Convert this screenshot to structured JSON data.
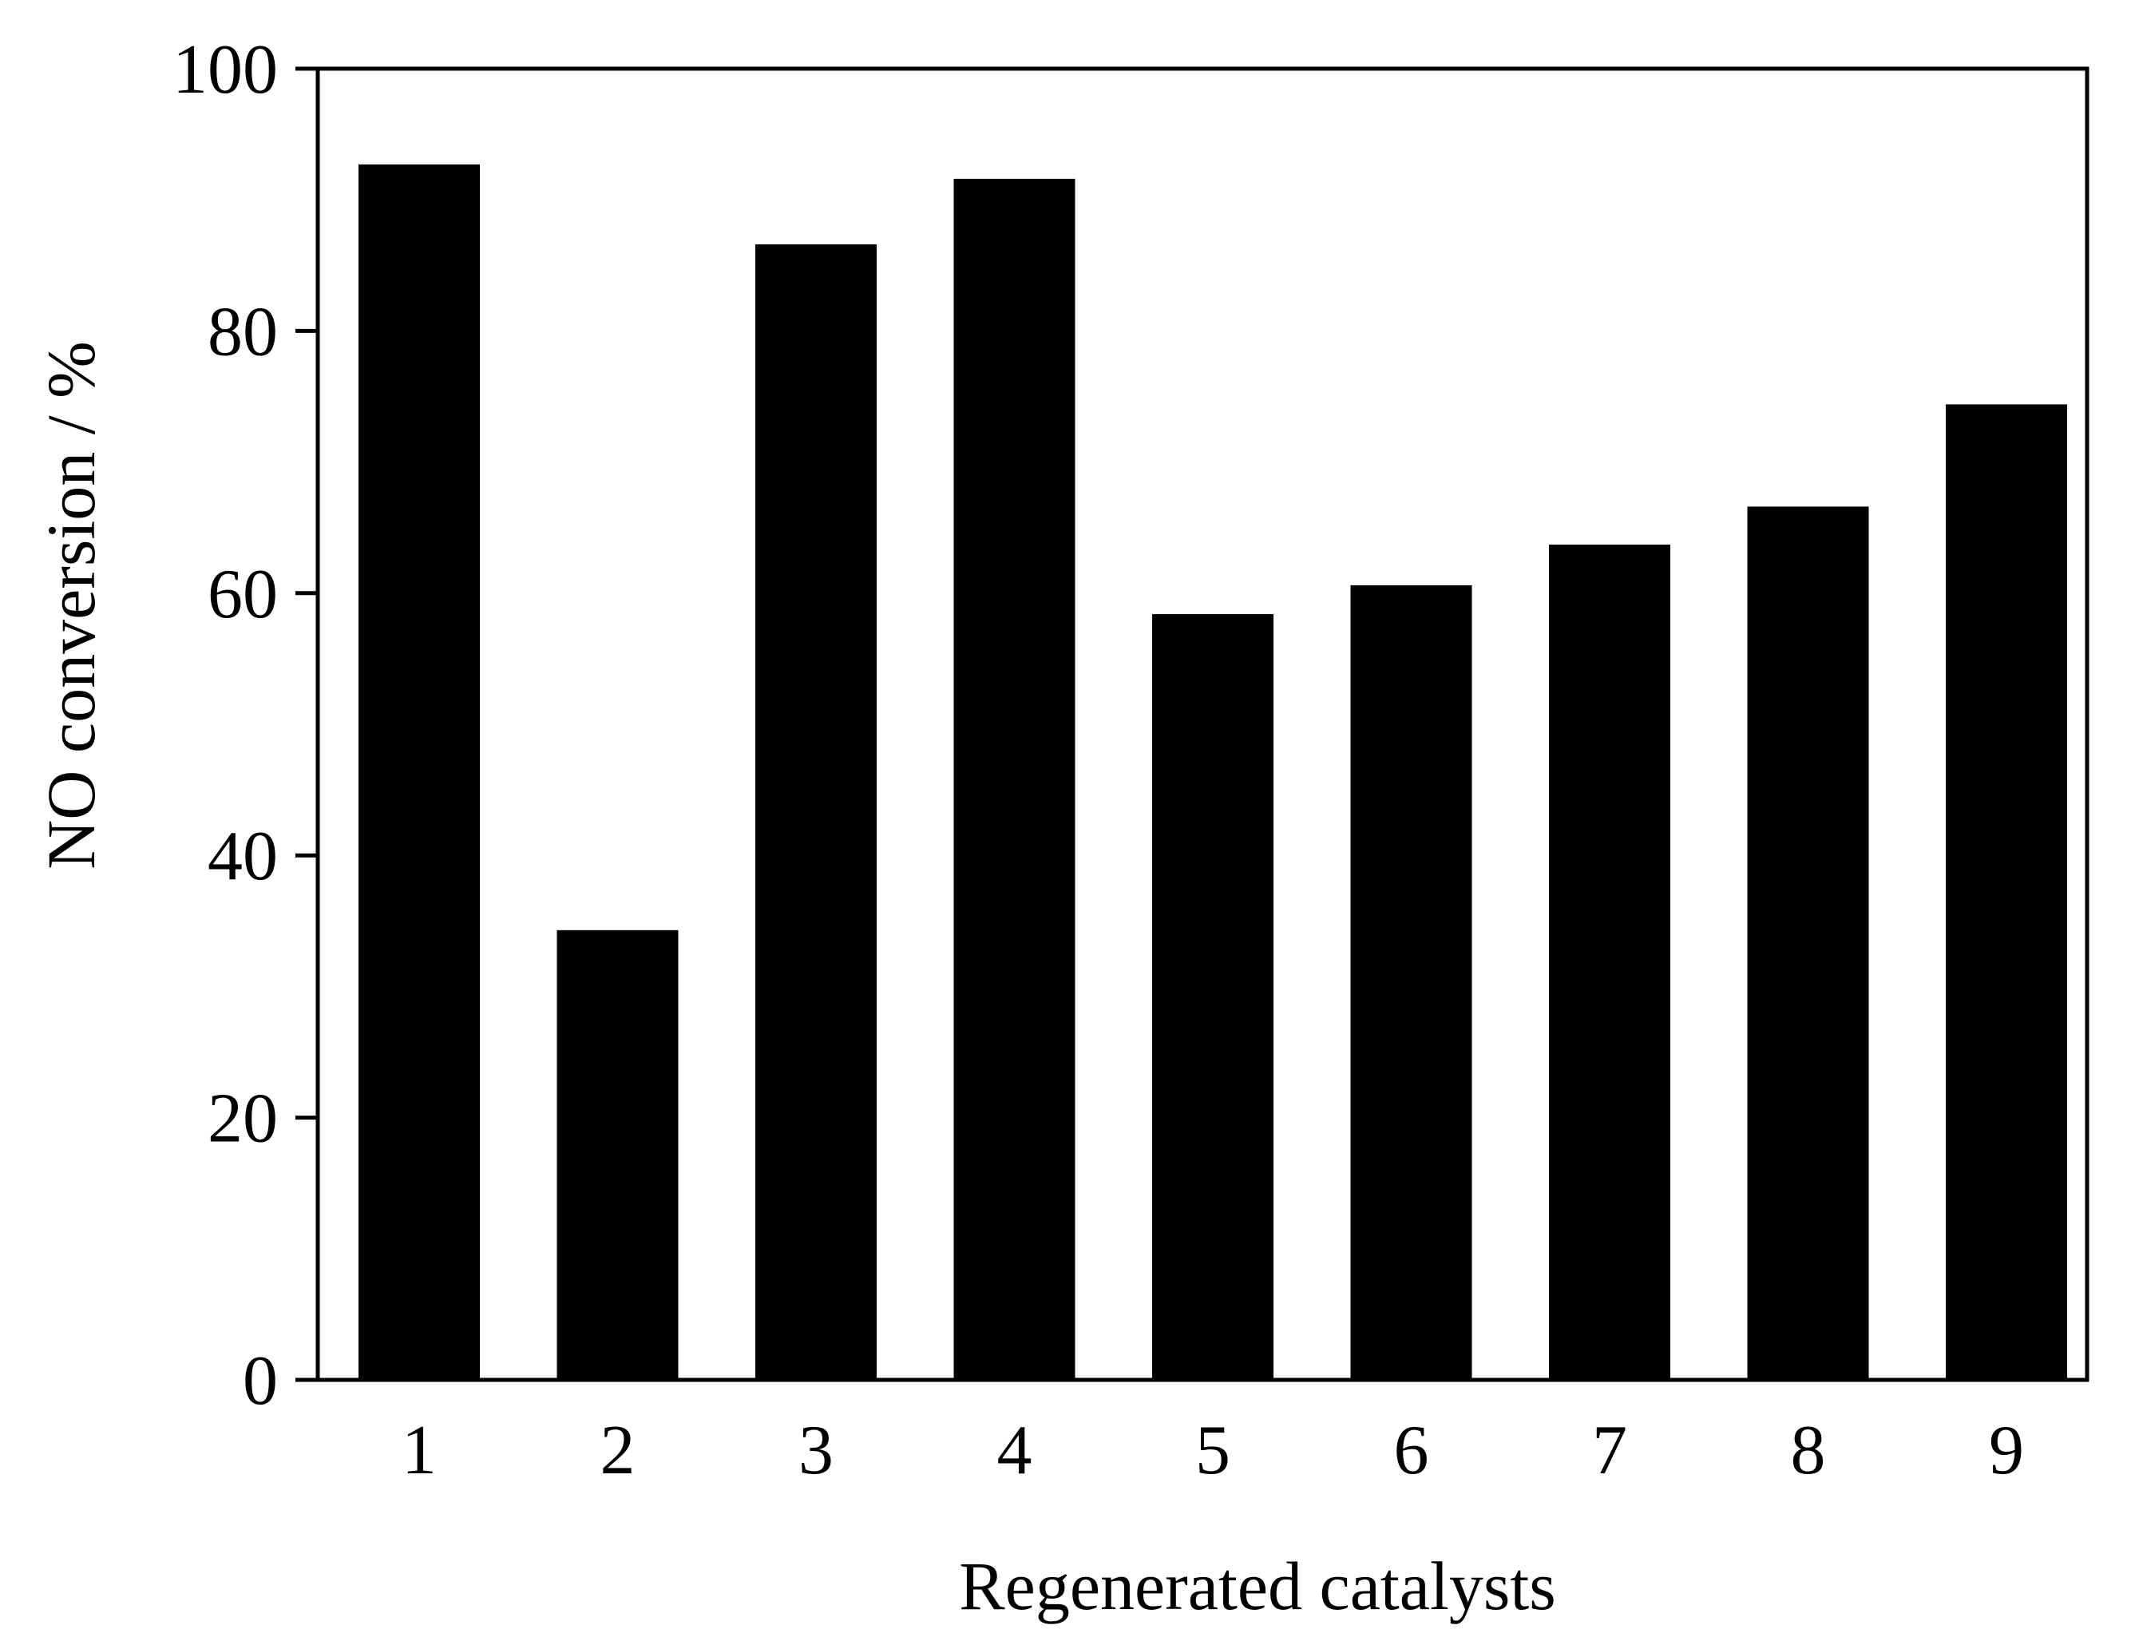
{
  "chart_data": {
    "type": "bar",
    "title": "",
    "xlabel": "Regenerated catalysts",
    "ylabel": "NO conversion / %",
    "categories": [
      "1",
      "2",
      "3",
      "4",
      "5",
      "6",
      "7",
      "8",
      "9"
    ],
    "series": [
      {
        "values": [
          92.7,
          34.3,
          86.6,
          91.6,
          58.4,
          60.6,
          63.7,
          66.6,
          74.4
        ]
      }
    ],
    "ylim": [
      0,
      100
    ],
    "yticks": [
      0,
      20,
      40,
      60,
      80,
      100
    ],
    "yticks_labels": [
      "0",
      "20",
      "40",
      "60",
      "80",
      "100"
    ],
    "grid": false,
    "legend": "none",
    "bar_color": "#000000"
  }
}
